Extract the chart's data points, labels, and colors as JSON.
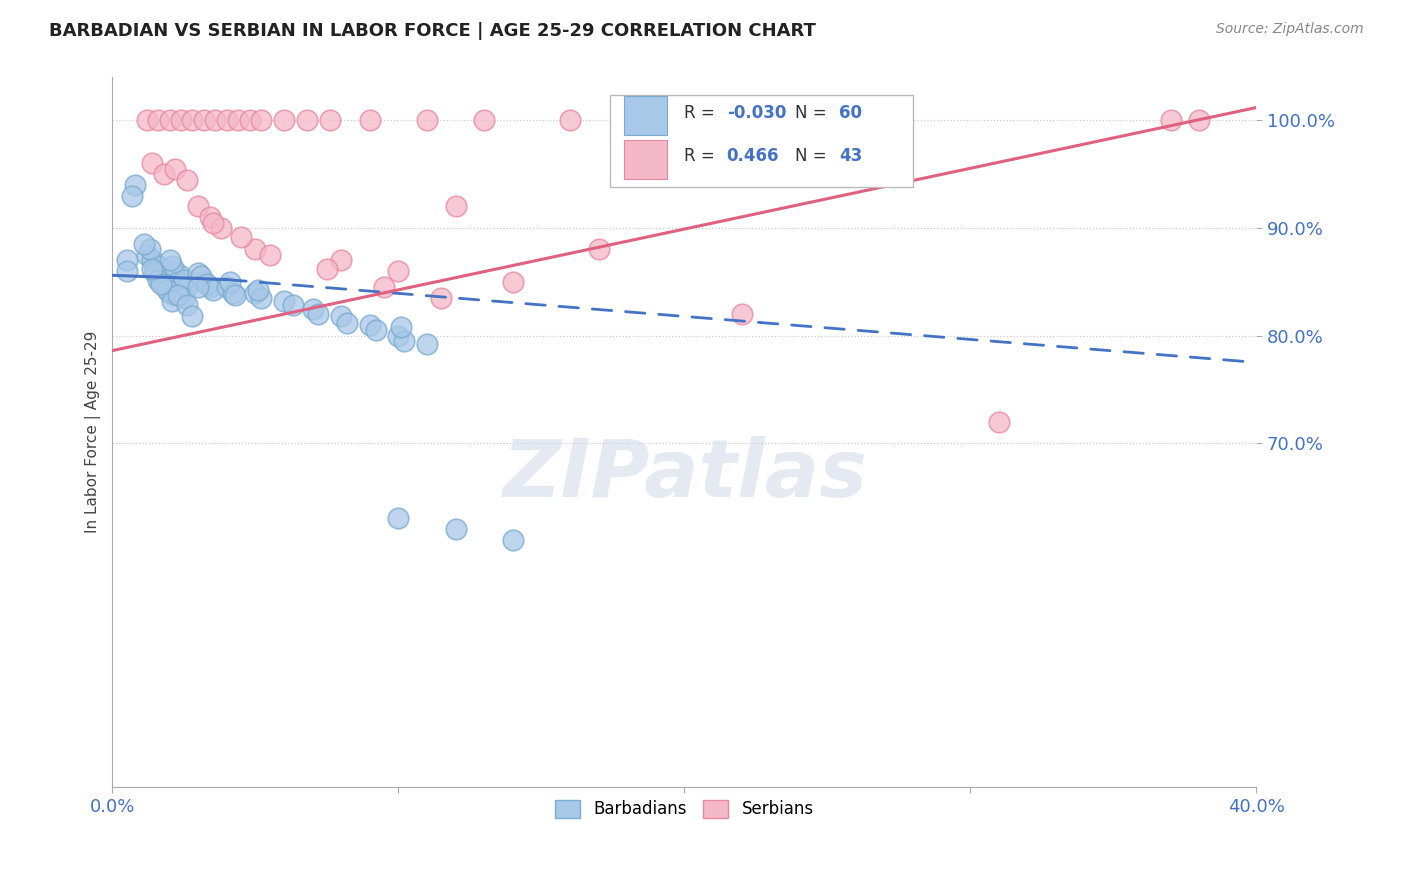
{
  "title": "BARBADIAN VS SERBIAN IN LABOR FORCE | AGE 25-29 CORRELATION CHART",
  "source": "Source: ZipAtlas.com",
  "ylabel": "In Labor Force | Age 25-29",
  "xlim": [
    0.0,
    0.4
  ],
  "ylim": [
    0.38,
    1.04
  ],
  "ytick_positions": [
    1.0,
    0.9,
    0.8,
    0.7
  ],
  "ytick_labels": [
    "100.0%",
    "90.0%",
    "80.0%",
    "70.0%"
  ],
  "grid_color": "#cccccc",
  "background_color": "#ffffff",
  "barbadian_color": "#a8c8e8",
  "barbadian_edge": "#7aaace",
  "serbian_color": "#f4b8c8",
  "serbian_edge": "#e888a0",
  "r_barbadian": -0.03,
  "n_barbadian": 60,
  "r_serbian": 0.466,
  "n_serbian": 43,
  "legend_labels": [
    "Barbadians",
    "Serbians"
  ],
  "watermark": "ZIPatlas",
  "blue_line_x": [
    0.0,
    0.04,
    0.4
  ],
  "blue_line_y": [
    0.856,
    0.852,
    0.775
  ],
  "pink_line_x": [
    0.0,
    0.4
  ],
  "pink_line_y": [
    0.786,
    1.012
  ],
  "barbadian_x": [
    0.005,
    0.008,
    0.005,
    0.007,
    0.012,
    0.014,
    0.016,
    0.013,
    0.015,
    0.018,
    0.011,
    0.022,
    0.024,
    0.021,
    0.023,
    0.026,
    0.02,
    0.025,
    0.032,
    0.03,
    0.034,
    0.031,
    0.033,
    0.035,
    0.04,
    0.042,
    0.041,
    0.043,
    0.05,
    0.052,
    0.051,
    0.06,
    0.063,
    0.07,
    0.072,
    0.08,
    0.082,
    0.09,
    0.092,
    0.1,
    0.102,
    0.101,
    0.11,
    0.02,
    0.015,
    0.018,
    0.022,
    0.025,
    0.016,
    0.019,
    0.021,
    0.017,
    0.023,
    0.014,
    0.026,
    0.028,
    0.1,
    0.12,
    0.14,
    0.03
  ],
  "barbadian_y": [
    0.87,
    0.94,
    0.86,
    0.93,
    0.875,
    0.87,
    0.865,
    0.88,
    0.86,
    0.855,
    0.885,
    0.86,
    0.855,
    0.865,
    0.85,
    0.845,
    0.87,
    0.852,
    0.85,
    0.858,
    0.845,
    0.855,
    0.848,
    0.842,
    0.845,
    0.84,
    0.85,
    0.838,
    0.84,
    0.835,
    0.842,
    0.832,
    0.828,
    0.825,
    0.82,
    0.818,
    0.812,
    0.81,
    0.805,
    0.8,
    0.795,
    0.808,
    0.792,
    0.84,
    0.858,
    0.848,
    0.838,
    0.835,
    0.852,
    0.842,
    0.832,
    0.848,
    0.838,
    0.862,
    0.828,
    0.818,
    0.63,
    0.62,
    0.61,
    0.845
  ],
  "serbian_x": [
    0.012,
    0.016,
    0.02,
    0.024,
    0.028,
    0.032,
    0.036,
    0.04,
    0.044,
    0.048,
    0.052,
    0.06,
    0.068,
    0.076,
    0.09,
    0.11,
    0.13,
    0.16,
    0.2,
    0.26,
    0.37,
    0.38,
    0.014,
    0.018,
    0.022,
    0.026,
    0.03,
    0.034,
    0.038,
    0.05,
    0.08,
    0.1,
    0.12,
    0.14,
    0.17,
    0.22,
    0.31,
    0.035,
    0.045,
    0.055,
    0.075,
    0.095,
    0.115
  ],
  "serbian_y": [
    1.0,
    1.0,
    1.0,
    1.0,
    1.0,
    1.0,
    1.0,
    1.0,
    1.0,
    1.0,
    1.0,
    1.0,
    1.0,
    1.0,
    1.0,
    1.0,
    1.0,
    1.0,
    1.0,
    1.0,
    1.0,
    1.0,
    0.96,
    0.95,
    0.955,
    0.945,
    0.92,
    0.91,
    0.9,
    0.88,
    0.87,
    0.86,
    0.92,
    0.85,
    0.88,
    0.82,
    0.72,
    0.905,
    0.892,
    0.875,
    0.862,
    0.845,
    0.835
  ]
}
